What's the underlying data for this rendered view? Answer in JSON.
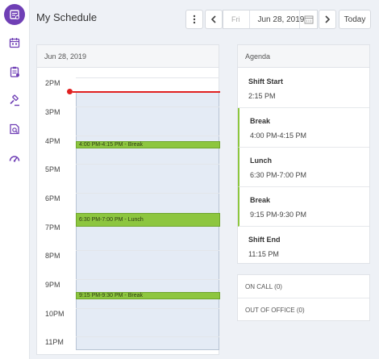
{
  "header": {
    "title": "My Schedule",
    "more_icon": "vertical-dots-icon",
    "prev_icon": "chevron-left-icon",
    "day": "Fri",
    "date": "Jun 28, 2019",
    "calendar_icon": "calendar-icon",
    "next_icon": "chevron-right-icon",
    "today_label": "Today"
  },
  "sidebar": {
    "items": [
      {
        "icon": "schedule-icon",
        "active": true
      },
      {
        "icon": "calendar-icon",
        "active": false
      },
      {
        "icon": "clipboard-icon",
        "active": false
      },
      {
        "icon": "gavel-icon",
        "active": false
      },
      {
        "icon": "document-search-icon",
        "active": false
      },
      {
        "icon": "gauge-icon",
        "active": false
      }
    ]
  },
  "calendar": {
    "date_label": "Jun 28, 2019",
    "hours": [
      "2PM",
      "3PM",
      "4PM",
      "5PM",
      "6PM",
      "7PM",
      "8PM",
      "9PM",
      "10PM",
      "11PM"
    ],
    "events": [
      {
        "label": "4:00 PM-4:15 PM - Break"
      },
      {
        "label": "6:30 PM-7:00 PM - Lunch"
      },
      {
        "label": "9:15 PM-9:30 PM - Break"
      }
    ]
  },
  "agenda": {
    "title": "Agenda",
    "items": [
      {
        "title": "Shift Start",
        "time": "2:15 PM"
      },
      {
        "title": "Break",
        "time": "4:00 PM-4:15 PM"
      },
      {
        "title": "Lunch",
        "time": "6:30 PM-7:00 PM"
      },
      {
        "title": "Break",
        "time": "9:15 PM-9:30 PM"
      },
      {
        "title": "Shift End",
        "time": "11:15 PM"
      }
    ]
  },
  "status": {
    "on_call": "ON CALL (0)",
    "out_of_office": "OUT OF OFFICE (0)"
  },
  "colors": {
    "accent": "#6f3fb5",
    "event_green": "#8dc63f",
    "now_line": "#e02020"
  }
}
